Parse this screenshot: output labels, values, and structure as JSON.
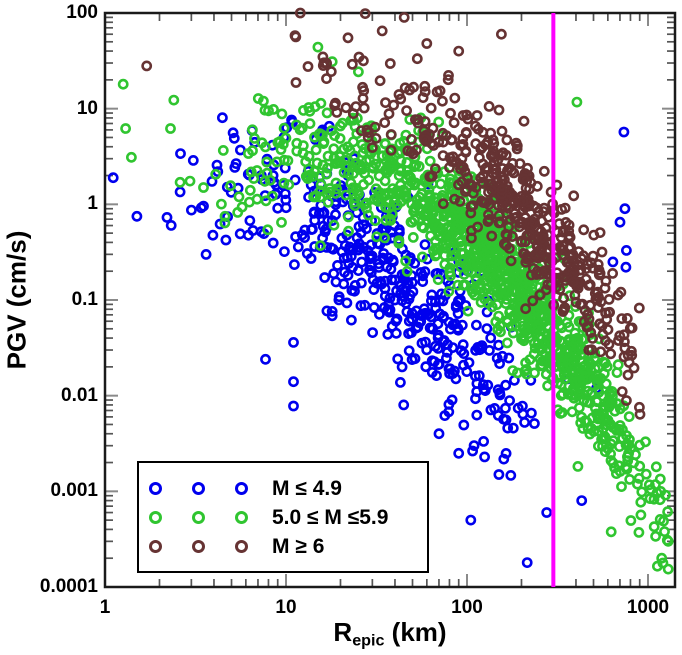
{
  "chart_data": {
    "type": "scatter",
    "title": "",
    "xlabel": {
      "base": "R",
      "sub": "epic",
      "unit": " (km)"
    },
    "ylabel": "PGV (cm/s)",
    "x_scale": "log",
    "y_scale": "log",
    "xlim": [
      1,
      1410
    ],
    "ylim": [
      0.0001,
      100
    ],
    "grid": false,
    "xticks": [
      {
        "value": 1,
        "label": "1"
      },
      {
        "value": 10,
        "label": "10"
      },
      {
        "value": 100,
        "label": "100"
      },
      {
        "value": 1000,
        "label": "1000"
      }
    ],
    "yticks": [
      {
        "value": 100,
        "label": "100"
      },
      {
        "value": 10,
        "label": "10"
      },
      {
        "value": 1,
        "label": "1"
      },
      {
        "value": 0.1,
        "label": "0.1"
      },
      {
        "value": 0.01,
        "label": "0.01"
      },
      {
        "value": 0.001,
        "label": "0.001"
      },
      {
        "value": 0.0001,
        "label": "0.0001"
      }
    ],
    "minor_tick_multiples": [
      2,
      3,
      4,
      5,
      6,
      7,
      8,
      9
    ],
    "style": {
      "frame_color": "#1a1a1a",
      "major_tick_color": "#8a8a8a",
      "minor_tick_color": "#555555",
      "background": "#ffffff"
    },
    "reference_line": {
      "axis": "x",
      "value": 300,
      "color": "#FF00FF",
      "width": 4
    },
    "legend": {
      "position": "bottom-left",
      "markers_per_row": 3
    },
    "series": [
      {
        "name": "M <= 4.9",
        "label": "M ≤ 4.9",
        "color": "#0000EE",
        "marker": "open-circle",
        "count": 420,
        "seed": 11,
        "lr_mean": 1.65,
        "lr_sd": 0.35,
        "lr2_mean": 0.95,
        "lr2_sd": 0.3,
        "lr2_frac": 0.15,
        "lr_min": 0.3,
        "lr_max": 2.45,
        "trend": {
          "ref": 1.5,
          "a": -0.6,
          "b": -1.55,
          "c": -0.7,
          "sigma": 0.42
        },
        "outliers": [
          [
            1.11,
            1.9
          ],
          [
            1.5,
            0.75
          ],
          [
            2.2,
            0.73
          ],
          [
            3.0,
            0.87
          ],
          [
            2.6,
            1.35
          ],
          [
            4.2,
            2.2
          ],
          [
            5.1,
            5.6
          ],
          [
            5.6,
            3.7
          ],
          [
            6.5,
            5.9
          ],
          [
            7.3,
            2.0
          ],
          [
            7.7,
            0.024
          ],
          [
            11,
            0.036
          ],
          [
            11,
            0.014
          ],
          [
            11,
            0.0078
          ],
          [
            70,
            0.004
          ],
          [
            90,
            0.0025
          ],
          [
            150,
            0.0015
          ],
          [
            105,
            0.0005
          ],
          [
            215,
            0.00018
          ],
          [
            430,
            0.0008
          ],
          [
            736,
            5.7
          ],
          [
            745,
            0.9
          ],
          [
            700,
            0.65
          ],
          [
            760,
            0.33
          ],
          [
            755,
            0.22
          ],
          [
            640,
            0.25
          ],
          [
            520,
            0.012
          ],
          [
            360,
            0.015
          ]
        ]
      },
      {
        "name": "5.0 <= M <= 5.9",
        "label": "5.0 ≤ M ≤5.9",
        "color": "#30C530",
        "marker": "open-circle",
        "count": 1150,
        "seed": 23,
        "lr_mean": 2.25,
        "lr_sd": 0.38,
        "lr2_mean": 1.35,
        "lr2_sd": 0.35,
        "lr2_frac": 0.2,
        "lr_min": 0.6,
        "lr_max": 3.13,
        "trend": {
          "ref": 2.0,
          "a": -0.3,
          "b": -1.725,
          "c": -0.975,
          "sigma": 0.32
        },
        "outliers": [
          [
            1.26,
            18
          ],
          [
            1.3,
            6.2
          ],
          [
            1.4,
            3.1
          ],
          [
            2.3,
            6.2
          ],
          [
            2.4,
            12.3
          ],
          [
            2.6,
            1.7
          ],
          [
            2.95,
            1.75
          ],
          [
            3.5,
            1.5
          ],
          [
            4.6,
            0.75
          ],
          [
            5.5,
            1.2
          ],
          [
            6.2,
            3.4
          ],
          [
            7.5,
            12
          ],
          [
            8,
            9.5
          ],
          [
            15,
            44
          ],
          [
            18,
            31
          ],
          [
            405,
            11.7
          ]
        ]
      },
      {
        "name": "M >= 6",
        "label": "M ≥ 6",
        "color": "#663333",
        "marker": "open-circle",
        "count": 500,
        "seed": 37,
        "lr_mean": 2.35,
        "lr_sd": 0.3,
        "lr2_mean": 1.6,
        "lr2_sd": 0.3,
        "lr2_frac": 0.12,
        "lr_min": 0.95,
        "lr_max": 2.96,
        "trend": {
          "ref": 2.2,
          "a": 0.1,
          "b": -1.857,
          "c": -0.612,
          "sigma": 0.33
        },
        "outliers": [
          [
            1.7,
            28
          ],
          [
            12,
            100
          ],
          [
            22,
            55
          ],
          [
            34,
            65
          ],
          [
            45,
            90
          ],
          [
            60,
            48
          ],
          [
            90,
            40
          ],
          [
            155,
            60
          ]
        ]
      }
    ]
  }
}
